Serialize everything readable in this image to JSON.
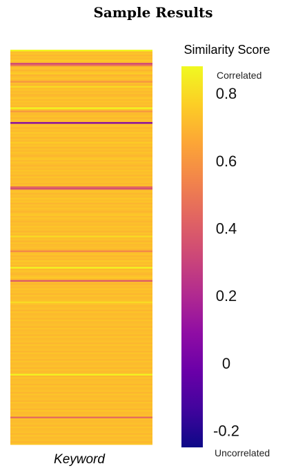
{
  "chart_data": {
    "type": "heatmap",
    "title": "Sample Results",
    "xlabel": "Keyword",
    "colorbar": {
      "label": "Similarity Score",
      "range": [
        -0.25,
        0.88
      ],
      "ticks": [
        {
          "value": 0.8,
          "label": "0.8"
        },
        {
          "value": 0.6,
          "label": "0.6"
        },
        {
          "value": 0.4,
          "label": "0.4"
        },
        {
          "value": 0.2,
          "label": "0.2"
        },
        {
          "value": 0.0,
          "label": "0"
        },
        {
          "value": -0.2,
          "label": "-0.2"
        }
      ],
      "top_label": "Correlated",
      "bottom_label": "Uncorrelated",
      "colormap": "plasma"
    },
    "columns": [
      "Keyword"
    ],
    "values": [
      0.87,
      0.72,
      0.74,
      0.7,
      0.73,
      0.71,
      0.75,
      0.72,
      0.33,
      0.5,
      0.72,
      0.74,
      0.7,
      0.73,
      0.76,
      0.69,
      0.72,
      0.74,
      0.71,
      0.6,
      0.73,
      0.7,
      0.8,
      0.72,
      0.74,
      0.71,
      0.73,
      0.7,
      0.72,
      0.75,
      0.71,
      0.74,
      0.72,
      0.73,
      0.7,
      0.87,
      0.74,
      0.6,
      0.72,
      0.71,
      0.74,
      0.7,
      0.73,
      0.72,
      0.05,
      0.72,
      0.74,
      0.7,
      0.73,
      0.71,
      0.75,
      0.72,
      0.74,
      0.7,
      0.73,
      0.71,
      0.76,
      0.72,
      0.74,
      0.7,
      0.73,
      0.71,
      0.74,
      0.72,
      0.7,
      0.73,
      0.75,
      0.71,
      0.74,
      0.72,
      0.7,
      0.73,
      0.71,
      0.74,
      0.72,
      0.73,
      0.7,
      0.74,
      0.71,
      0.72,
      0.73,
      0.7,
      0.74,
      0.45,
      0.35,
      0.72,
      0.74,
      0.7,
      0.73,
      0.71,
      0.75,
      0.72,
      0.74,
      0.7,
      0.73,
      0.71,
      0.74,
      0.72,
      0.7,
      0.73,
      0.75,
      0.71,
      0.74,
      0.72,
      0.7,
      0.73,
      0.71,
      0.74,
      0.72,
      0.73,
      0.7,
      0.74,
      0.71,
      0.8,
      0.72,
      0.73,
      0.7,
      0.74,
      0.71,
      0.72,
      0.73,
      0.7,
      0.55,
      0.72,
      0.74,
      0.7,
      0.73,
      0.71,
      0.75,
      0.72,
      0.74,
      0.7,
      0.87,
      0.71,
      0.74,
      0.72,
      0.7,
      0.73,
      0.75,
      0.71,
      0.4,
      0.72,
      0.7,
      0.73,
      0.71,
      0.74,
      0.72,
      0.73,
      0.7,
      0.74,
      0.71,
      0.72,
      0.73,
      0.8,
      0.74,
      0.71,
      0.72,
      0.73,
      0.7,
      0.74,
      0.71,
      0.72,
      0.73,
      0.7,
      0.74,
      0.71,
      0.72,
      0.73,
      0.7,
      0.74,
      0.71,
      0.72,
      0.73,
      0.7,
      0.74,
      0.71,
      0.72,
      0.73,
      0.7,
      0.74,
      0.71,
      0.72,
      0.73,
      0.7,
      0.74,
      0.71,
      0.72,
      0.73,
      0.7,
      0.74,
      0.71,
      0.72,
      0.73,
      0.7,
      0.74,
      0.71,
      0.72,
      0.87,
      0.7,
      0.74,
      0.71,
      0.72,
      0.73,
      0.7,
      0.74,
      0.71,
      0.72,
      0.73,
      0.7,
      0.74,
      0.71,
      0.72,
      0.73,
      0.7,
      0.74,
      0.71,
      0.72,
      0.73,
      0.7,
      0.74,
      0.71,
      0.72,
      0.73,
      0.45,
      0.74,
      0.71,
      0.72,
      0.73,
      0.7,
      0.74,
      0.71,
      0.72,
      0.73,
      0.7,
      0.74,
      0.71,
      0.72,
      0.73,
      0.7,
      0.74
    ]
  }
}
